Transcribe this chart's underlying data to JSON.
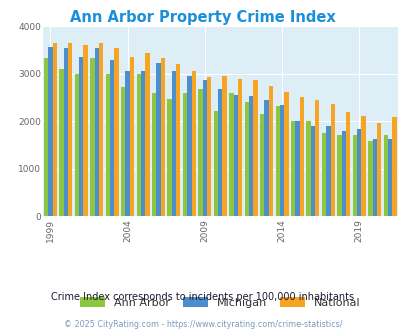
{
  "title": "Ann Arbor Property Crime Index",
  "title_color": "#1a8fda",
  "subtitle": "Crime Index corresponds to incidents per 100,000 inhabitants",
  "subtitle_color": "#1a1a2e",
  "footer": "© 2025 CityRating.com - https://www.cityrating.com/crime-statistics/",
  "footer_color": "#7a9abf",
  "years": [
    1999,
    2000,
    2001,
    2002,
    2003,
    2004,
    2005,
    2006,
    2007,
    2008,
    2009,
    2010,
    2011,
    2012,
    2013,
    2014,
    2015,
    2016,
    2017,
    2018,
    2019,
    2020,
    2021
  ],
  "ann_arbor": [
    3340,
    3100,
    3000,
    3340,
    2990,
    2730,
    3000,
    2600,
    2480,
    2600,
    2680,
    2220,
    2600,
    2410,
    2160,
    2330,
    2010,
    2000,
    1760,
    1710,
    1720,
    1580,
    1720
  ],
  "michigan": [
    3560,
    3540,
    3350,
    3540,
    3290,
    3060,
    3060,
    3220,
    3060,
    2950,
    2870,
    2680,
    2550,
    2530,
    2450,
    2350,
    2010,
    1910,
    1900,
    1800,
    1830,
    1630,
    1620
  ],
  "national": [
    3640,
    3660,
    3600,
    3640,
    3550,
    3350,
    3430,
    3330,
    3200,
    3050,
    2940,
    2960,
    2900,
    2860,
    2740,
    2610,
    2510,
    2450,
    2360,
    2200,
    2110,
    1960,
    2090
  ],
  "ann_arbor_color": "#8dc641",
  "michigan_color": "#4d8fcc",
  "national_color": "#f5a523",
  "plot_bg_color": "#ddeef6",
  "ylim": [
    0,
    4000
  ],
  "yticks": [
    0,
    1000,
    2000,
    3000,
    4000
  ],
  "legend_labels": [
    "Ann Arbor",
    "Michigan",
    "National"
  ],
  "bar_width": 0.28,
  "grid_color": "#ffffff",
  "tick_label_color": "#666666",
  "tick_years": [
    1999,
    2004,
    2009,
    2014,
    2019
  ]
}
